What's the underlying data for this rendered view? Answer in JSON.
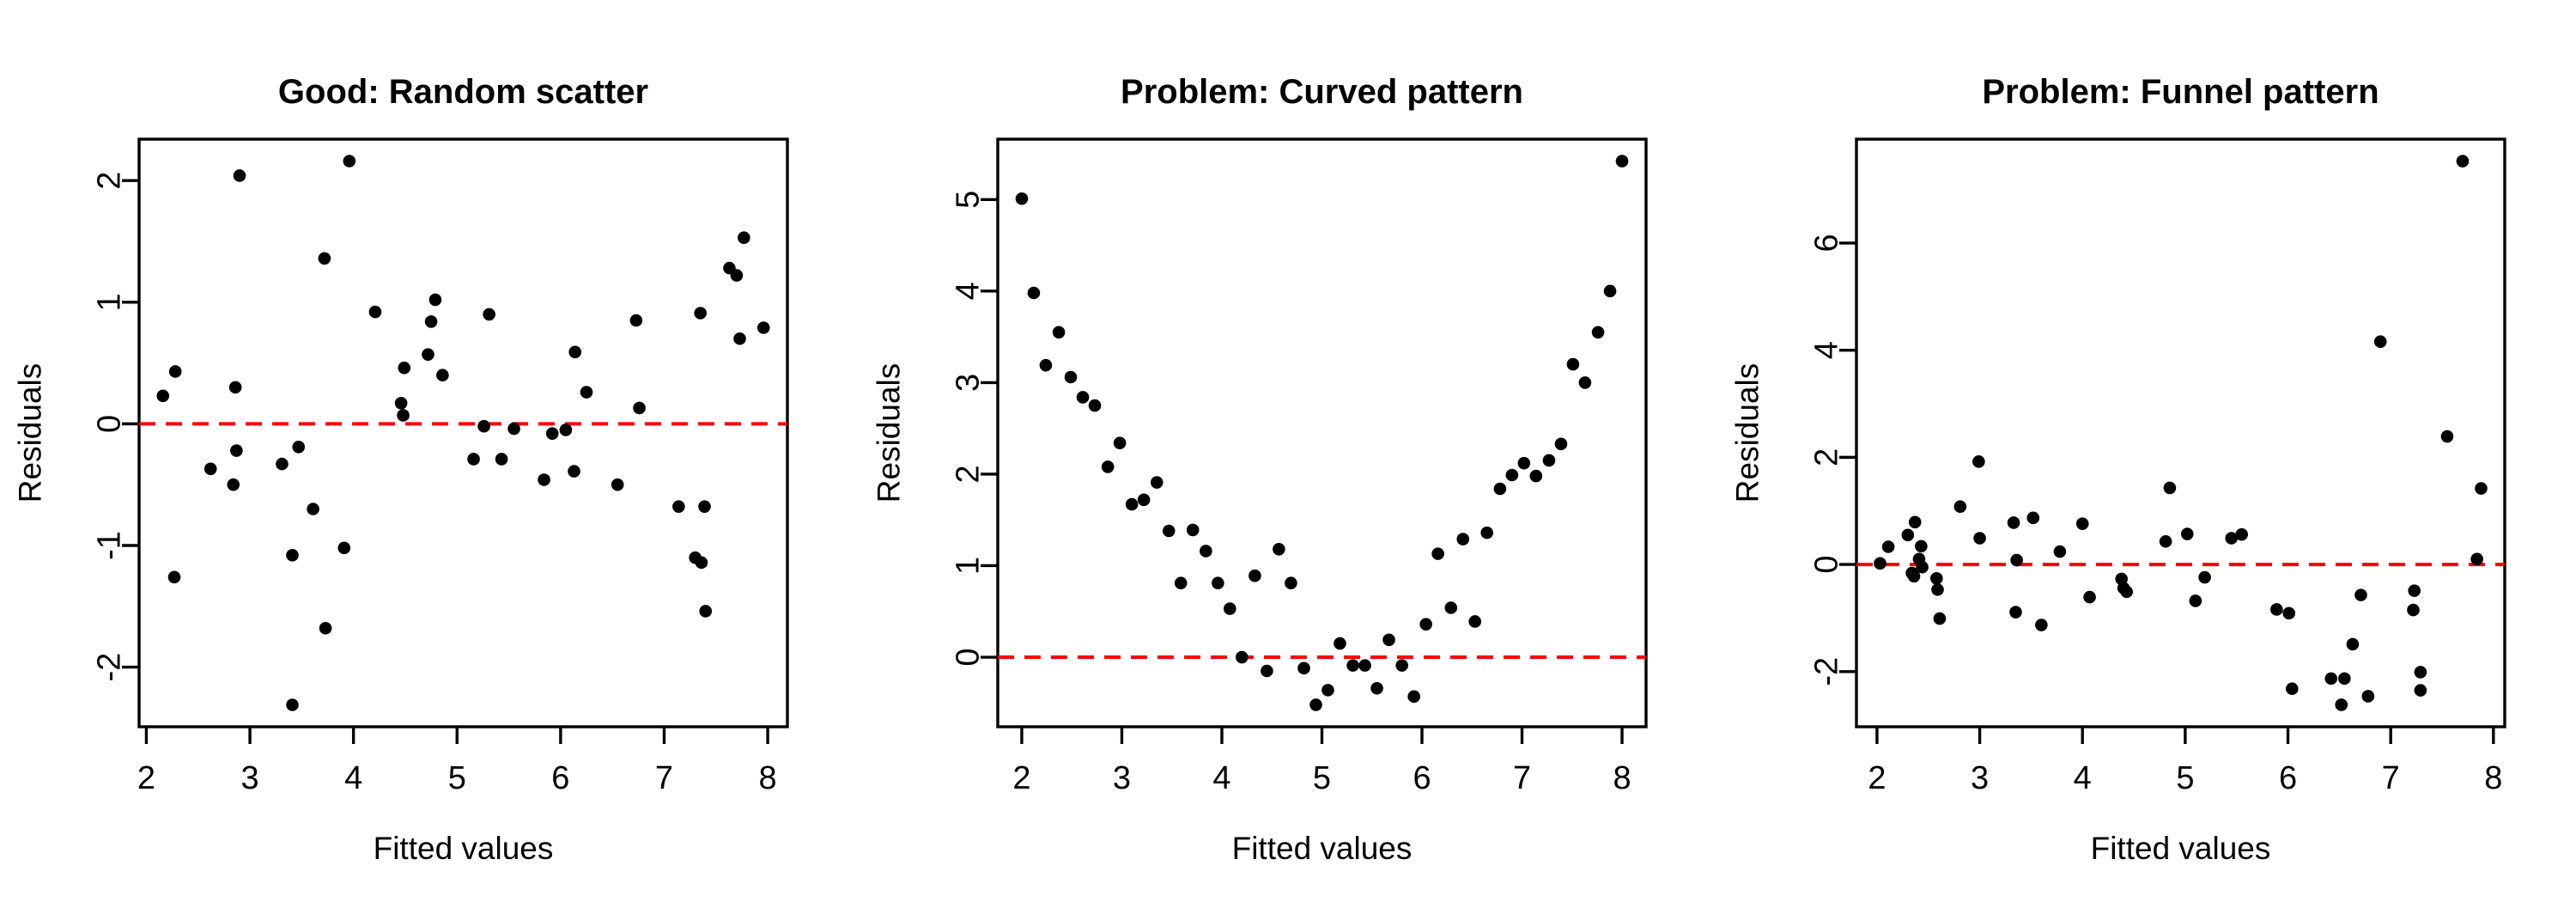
{
  "page": {
    "background": "#ffffff"
  },
  "chart_data": [
    {
      "type": "scatter",
      "title": "Good: Random scatter",
      "xlabel": "Fitted values",
      "ylabel": "Residuals",
      "xlim": [
        1.93,
        8.19
      ],
      "ylim": [
        -2.49,
        2.34
      ],
      "xticks": [
        2,
        3,
        4,
        5,
        6,
        7,
        8
      ],
      "yticks": [
        -2,
        -1,
        0,
        1,
        2
      ],
      "grid": false,
      "point_color": "#000000",
      "ref_line": {
        "y": 0,
        "color": "#FF0000",
        "style": "dashed"
      },
      "points": [
        [
          2.16,
          0.23
        ],
        [
          2.28,
          0.43
        ],
        [
          2.27,
          -1.26
        ],
        [
          2.62,
          -0.37
        ],
        [
          2.9,
          2.04
        ],
        [
          2.86,
          0.3
        ],
        [
          2.84,
          -0.5
        ],
        [
          2.87,
          -0.22
        ],
        [
          3.31,
          -0.33
        ],
        [
          3.41,
          -1.08
        ],
        [
          3.41,
          -2.31
        ],
        [
          3.47,
          -0.19
        ],
        [
          3.61,
          -0.7
        ],
        [
          3.72,
          1.36
        ],
        [
          3.73,
          -1.68
        ],
        [
          3.91,
          -1.02
        ],
        [
          3.96,
          2.16
        ],
        [
          4.21,
          0.92
        ],
        [
          4.46,
          0.17
        ],
        [
          4.48,
          0.07
        ],
        [
          4.49,
          0.46
        ],
        [
          4.72,
          0.57
        ],
        [
          4.75,
          0.84
        ],
        [
          4.79,
          1.02
        ],
        [
          4.86,
          0.4
        ],
        [
          5.16,
          -0.29
        ],
        [
          5.26,
          -0.02
        ],
        [
          5.31,
          0.9
        ],
        [
          5.43,
          -0.29
        ],
        [
          5.55,
          -0.04
        ],
        [
          5.84,
          -0.46
        ],
        [
          5.92,
          -0.08
        ],
        [
          6.05,
          -0.05
        ],
        [
          6.13,
          -0.39
        ],
        [
          6.14,
          0.59
        ],
        [
          6.25,
          0.26
        ],
        [
          6.55,
          -0.5
        ],
        [
          6.73,
          0.85
        ],
        [
          6.76,
          0.13
        ],
        [
          7.14,
          -0.68
        ],
        [
          7.3,
          -1.1
        ],
        [
          7.35,
          0.91
        ],
        [
          7.36,
          -1.14
        ],
        [
          7.39,
          -0.68
        ],
        [
          7.4,
          -1.54
        ],
        [
          7.63,
          1.28
        ],
        [
          7.7,
          1.22
        ],
        [
          7.73,
          0.7
        ],
        [
          7.77,
          1.53
        ],
        [
          7.96,
          0.79
        ]
      ]
    },
    {
      "type": "scatter",
      "title": "Problem: Curved pattern",
      "xlabel": "Fitted values",
      "ylabel": "Residuals",
      "xlim": [
        1.76,
        8.24
      ],
      "ylim": [
        -0.76,
        5.66
      ],
      "xticks": [
        2,
        3,
        4,
        5,
        6,
        7,
        8
      ],
      "yticks": [
        0,
        1,
        2,
        3,
        4,
        5
      ],
      "grid": false,
      "point_color": "#000000",
      "ref_line": {
        "y": 0,
        "color": "#FF0000",
        "style": "dashed"
      },
      "points": [
        [
          2.0,
          5.01
        ],
        [
          2.12,
          3.98
        ],
        [
          2.24,
          3.19
        ],
        [
          2.37,
          3.55
        ],
        [
          2.49,
          3.06
        ],
        [
          2.61,
          2.84
        ],
        [
          2.73,
          2.75
        ],
        [
          2.86,
          2.08
        ],
        [
          2.98,
          2.34
        ],
        [
          3.1,
          1.67
        ],
        [
          3.22,
          1.72
        ],
        [
          3.35,
          1.91
        ],
        [
          3.47,
          1.38
        ],
        [
          3.59,
          0.81
        ],
        [
          3.71,
          1.39
        ],
        [
          3.84,
          1.16
        ],
        [
          3.96,
          0.81
        ],
        [
          4.08,
          0.53
        ],
        [
          4.2,
          0.0
        ],
        [
          4.33,
          0.89
        ],
        [
          4.45,
          -0.15
        ],
        [
          4.57,
          1.18
        ],
        [
          4.69,
          0.81
        ],
        [
          4.82,
          -0.12
        ],
        [
          4.94,
          -0.52
        ],
        [
          5.06,
          -0.36
        ],
        [
          5.18,
          0.15
        ],
        [
          5.31,
          -0.09
        ],
        [
          5.43,
          -0.09
        ],
        [
          5.55,
          -0.34
        ],
        [
          5.67,
          0.19
        ],
        [
          5.8,
          -0.09
        ],
        [
          5.92,
          -0.43
        ],
        [
          6.04,
          0.36
        ],
        [
          6.16,
          1.13
        ],
        [
          6.29,
          0.54
        ],
        [
          6.41,
          1.29
        ],
        [
          6.53,
          0.39
        ],
        [
          6.65,
          1.36
        ],
        [
          6.78,
          1.84
        ],
        [
          6.9,
          1.99
        ],
        [
          7.02,
          2.12
        ],
        [
          7.14,
          1.98
        ],
        [
          7.27,
          2.15
        ],
        [
          7.39,
          2.33
        ],
        [
          7.51,
          3.2
        ],
        [
          7.63,
          3.0
        ],
        [
          7.76,
          3.55
        ],
        [
          7.88,
          4.0
        ],
        [
          8.0,
          5.42
        ]
      ]
    },
    {
      "type": "scatter",
      "title": "Problem: Funnel pattern",
      "xlabel": "Fitted values",
      "ylabel": "Residuals",
      "xlim": [
        1.8,
        8.11
      ],
      "ylim": [
        -3.03,
        7.94
      ],
      "xticks": [
        2,
        3,
        4,
        5,
        6,
        7,
        8
      ],
      "yticks": [
        -2,
        0,
        2,
        4,
        6
      ],
      "grid": false,
      "point_color": "#000000",
      "ref_line": {
        "y": 0,
        "color": "#FF0000",
        "style": "dashed"
      },
      "points": [
        [
          2.03,
          0.02
        ],
        [
          2.11,
          0.33
        ],
        [
          2.3,
          0.55
        ],
        [
          2.34,
          -0.16
        ],
        [
          2.36,
          -0.22
        ],
        [
          2.37,
          0.79
        ],
        [
          2.41,
          0.1
        ],
        [
          2.43,
          0.34
        ],
        [
          2.44,
          -0.05
        ],
        [
          2.58,
          -0.26
        ],
        [
          2.59,
          -0.47
        ],
        [
          2.61,
          -1.01
        ],
        [
          2.81,
          1.08
        ],
        [
          2.99,
          1.92
        ],
        [
          3.0,
          0.49
        ],
        [
          3.33,
          0.78
        ],
        [
          3.35,
          -0.89
        ],
        [
          3.36,
          0.08
        ],
        [
          3.52,
          0.87
        ],
        [
          3.6,
          -1.13
        ],
        [
          3.78,
          0.24
        ],
        [
          4.0,
          0.76
        ],
        [
          4.07,
          -0.61
        ],
        [
          4.38,
          -0.27
        ],
        [
          4.4,
          -0.44
        ],
        [
          4.43,
          -0.51
        ],
        [
          4.81,
          0.43
        ],
        [
          4.85,
          1.43
        ],
        [
          5.02,
          0.57
        ],
        [
          5.1,
          -0.68
        ],
        [
          5.19,
          -0.24
        ],
        [
          5.45,
          0.49
        ],
        [
          5.55,
          0.56
        ],
        [
          5.89,
          -0.84
        ],
        [
          6.01,
          -0.91
        ],
        [
          6.04,
          -2.32
        ],
        [
          6.42,
          -2.13
        ],
        [
          6.52,
          -2.62
        ],
        [
          6.55,
          -2.13
        ],
        [
          6.63,
          -1.49
        ],
        [
          6.71,
          -0.57
        ],
        [
          6.78,
          -2.46
        ],
        [
          6.9,
          4.16
        ],
        [
          7.22,
          -0.85
        ],
        [
          7.23,
          -0.49
        ],
        [
          7.29,
          -2.01
        ],
        [
          7.29,
          -2.35
        ],
        [
          7.55,
          2.39
        ],
        [
          7.7,
          7.53
        ],
        [
          7.84,
          0.1
        ],
        [
          7.88,
          1.42
        ]
      ]
    }
  ]
}
